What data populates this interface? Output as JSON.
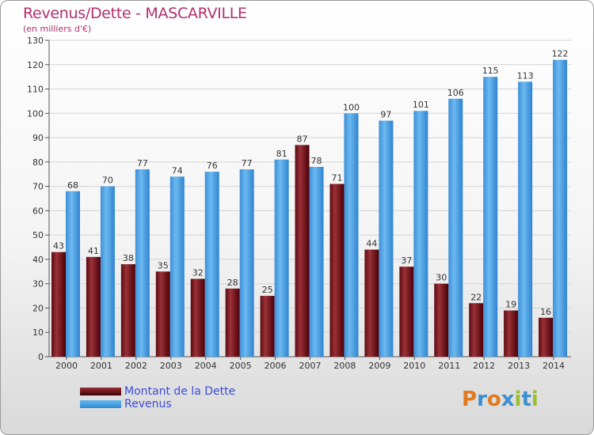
{
  "chart_data": {
    "type": "bar",
    "title": "Revenus/Dette - MASCARVILLE",
    "subtitle": "(en milliers d'€)",
    "categories": [
      "2000",
      "2001",
      "2002",
      "2003",
      "2004",
      "2005",
      "2006",
      "2007",
      "2008",
      "2009",
      "2010",
      "2011",
      "2012",
      "2013",
      "2014"
    ],
    "series": [
      {
        "name": "Montant de la Dette",
        "color": "#7a1a20",
        "values": [
          43,
          41,
          38,
          35,
          32,
          28,
          25,
          87,
          71,
          44,
          37,
          30,
          22,
          19,
          16
        ]
      },
      {
        "name": "Revenus",
        "color": "#4aa3e8",
        "values": [
          68,
          70,
          77,
          74,
          76,
          77,
          81,
          78,
          100,
          97,
          101,
          106,
          115,
          113,
          122
        ]
      }
    ],
    "ylim": [
      0,
      130
    ],
    "yticks": [
      0,
      10,
      20,
      30,
      40,
      50,
      60,
      70,
      80,
      90,
      100,
      110,
      120,
      130
    ],
    "grid": true,
    "legend": "bottom-left"
  },
  "brand": {
    "letters": [
      "P",
      "r",
      "o",
      "x",
      "i",
      "t",
      "i"
    ],
    "colors": [
      "#e07a1e",
      "#3a8fd0",
      "#e07a1e",
      "#3a8fd0",
      "#9ac02e",
      "#3a8fd0",
      "#9ac02e"
    ]
  }
}
